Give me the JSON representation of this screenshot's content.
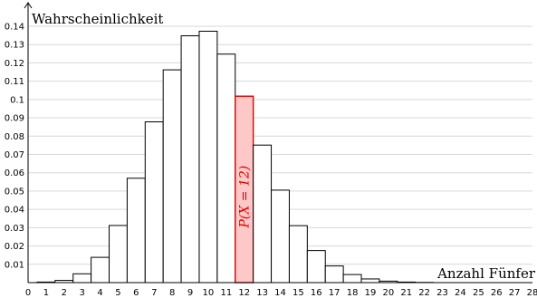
{
  "chart_data": {
    "type": "bar",
    "title": "",
    "ylabel": "Wahrscheinlichkeit",
    "xlabel": "Anzahl Fünfer",
    "x_ticks": [
      0,
      1,
      2,
      3,
      4,
      5,
      6,
      7,
      8,
      9,
      10,
      11,
      12,
      13,
      14,
      15,
      16,
      17,
      18,
      19,
      20,
      21,
      22,
      23,
      24,
      25,
      26,
      27,
      28
    ],
    "y_ticks": [
      "0.01",
      "0.02",
      "0.03",
      "0.04",
      "0.05",
      "0.06",
      "0.07",
      "0.08",
      "0.09",
      "0.1",
      "0.11",
      "0.12",
      "0.13",
      "0.14"
    ],
    "xlim": [
      0,
      28
    ],
    "ylim": [
      0,
      0.145
    ],
    "grid": "horizontal",
    "categories": [
      1,
      2,
      3,
      4,
      5,
      6,
      7,
      8,
      9,
      10,
      11,
      12,
      13,
      14,
      15,
      16,
      17,
      18,
      19,
      20,
      21,
      22
    ],
    "values": [
      0.0003,
      0.0012,
      0.0048,
      0.0138,
      0.0312,
      0.057,
      0.0878,
      0.1162,
      0.1348,
      0.1373,
      0.1248,
      0.1018,
      0.0751,
      0.0505,
      0.0311,
      0.0175,
      0.0091,
      0.0044,
      0.002,
      0.0008,
      0.0003,
      0.0001
    ],
    "highlight": {
      "x": 12,
      "label": "P(X = 12)",
      "fill": "#ffc8c8",
      "stroke": "#e00000"
    },
    "colors": {
      "bar_fill": "#ffffff",
      "bar_stroke": "#000000",
      "grid": "#d9d9d9",
      "axis": "#000000"
    }
  }
}
